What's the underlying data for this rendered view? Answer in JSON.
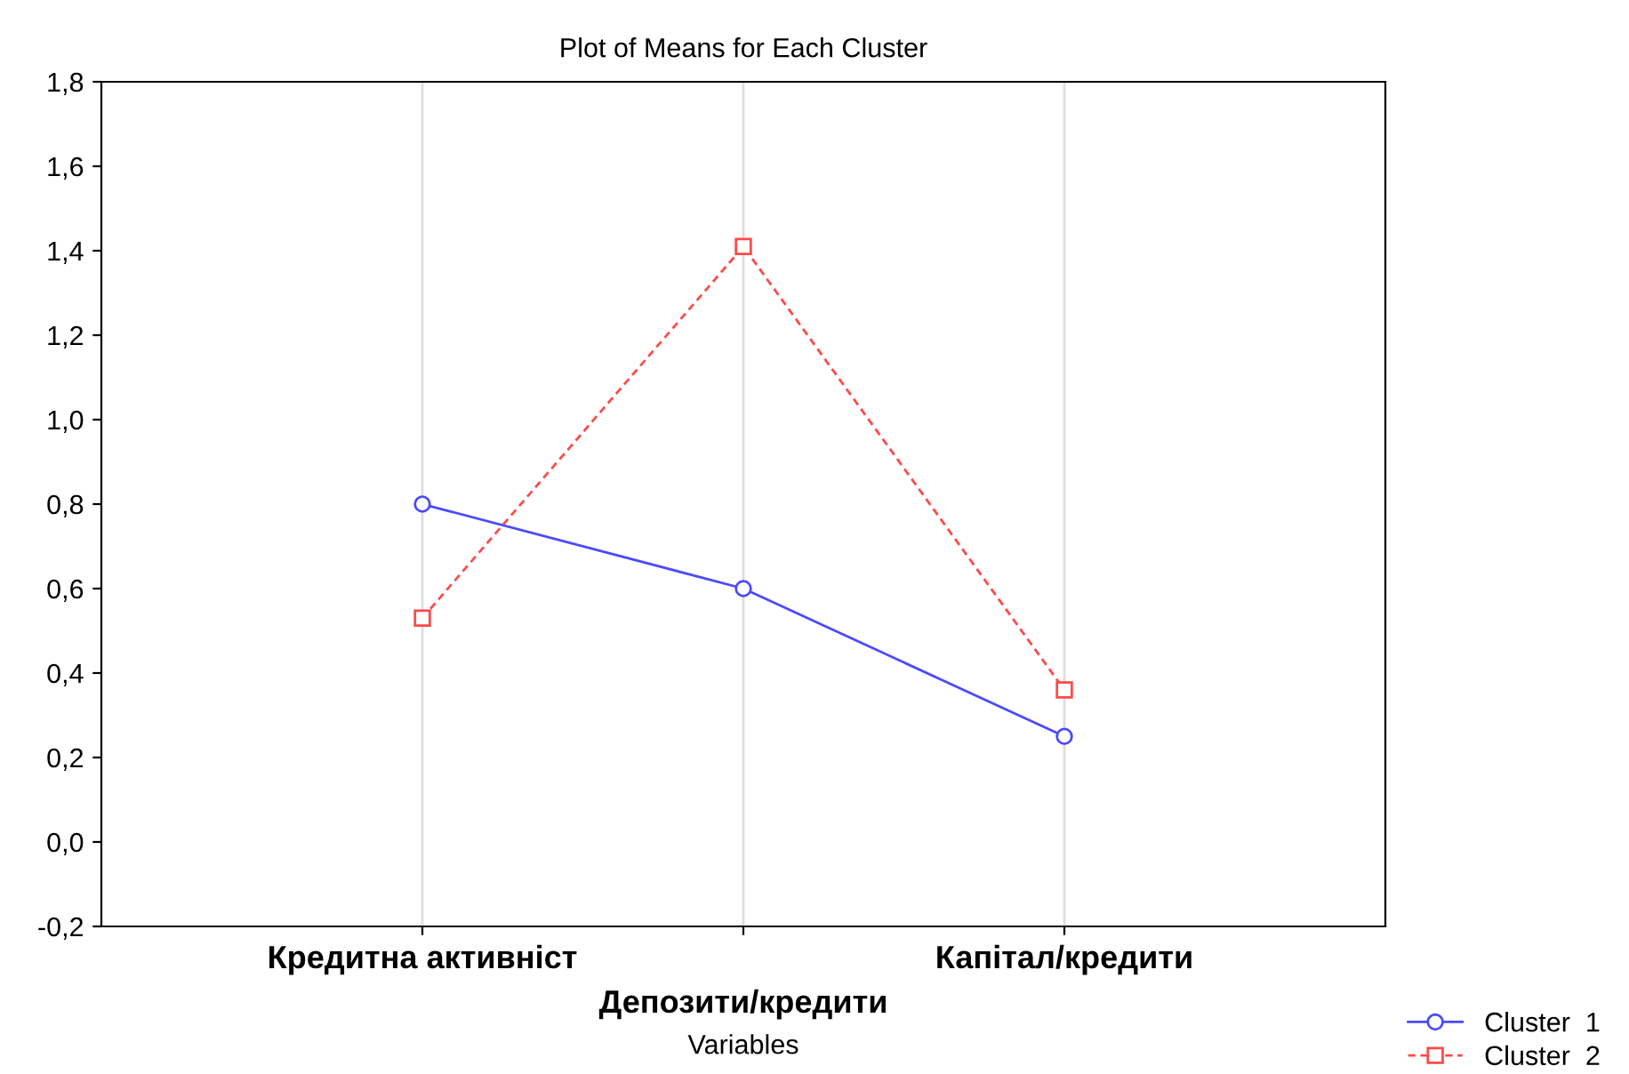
{
  "chart_data": {
    "type": "line",
    "title": "Plot of Means for Each Cluster",
    "xlabel": "Variables",
    "categories": [
      "Кредитна активніст",
      "Депозити/кредити",
      "Капітал/кредити"
    ],
    "series": [
      {
        "name": "Cluster  1",
        "color": "#4a4aff",
        "values": [
          0.8,
          0.6,
          0.25
        ],
        "marker": "circle",
        "line_style": "solid"
      },
      {
        "name": "Cluster  2",
        "color": "#ff4a4a",
        "values": [
          0.53,
          1.41,
          0.36
        ],
        "marker": "square",
        "line_style": "dashed"
      }
    ],
    "ylim": [
      -0.2,
      1.8
    ],
    "yticks": [
      {
        "value": -0.2,
        "label": "-0,2"
      },
      {
        "value": 0.0,
        "label": "0,0"
      },
      {
        "value": 0.2,
        "label": "0,2"
      },
      {
        "value": 0.4,
        "label": "0,4"
      },
      {
        "value": 0.6,
        "label": "0,6"
      },
      {
        "value": 0.8,
        "label": "0,8"
      },
      {
        "value": 1.0,
        "label": "1,0"
      },
      {
        "value": 1.2,
        "label": "1,2"
      },
      {
        "value": 1.4,
        "label": "1,4"
      },
      {
        "value": 1.6,
        "label": "1,6"
      },
      {
        "value": 1.8,
        "label": "1,8"
      }
    ],
    "grid": "x",
    "legend": "bottom right"
  }
}
